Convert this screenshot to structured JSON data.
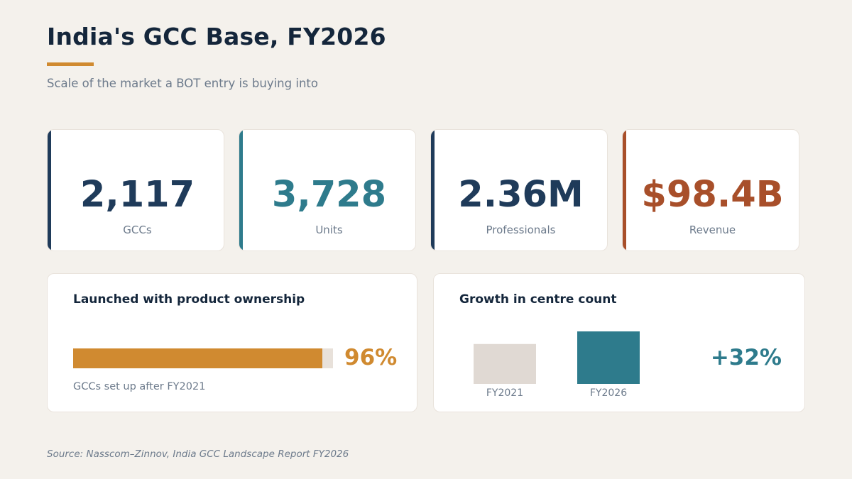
{
  "header": {
    "title": "India's GCC Base, FY2026",
    "subtitle": "Scale of the market a BOT entry is buying into"
  },
  "colors": {
    "navy": "#1f3b5a",
    "teal": "#2e7b8c",
    "rust": "#a84f2a",
    "orange": "#d08a30",
    "muted_bar": "#e0d9d3"
  },
  "kpis": [
    {
      "value": "2,117",
      "label": "GCCs",
      "color": "#1f3b5a"
    },
    {
      "value": "3,728",
      "label": "Units",
      "color": "#2e7b8c"
    },
    {
      "value": "2.36M",
      "label": "Professionals",
      "color": "#1f3b5a"
    },
    {
      "value": "$98.4B",
      "label": "Revenue",
      "color": "#a84f2a"
    }
  ],
  "ownership": {
    "title": "Launched with product ownership",
    "value_label": "96%",
    "caption": "GCCs set up after FY2021"
  },
  "growth": {
    "title": "Growth in centre count",
    "change_label": "+32%"
  },
  "chart_data": [
    {
      "type": "bar",
      "orientation": "horizontal",
      "title": "Launched with product ownership",
      "categories": [
        "GCCs set up after FY2021"
      ],
      "values": [
        96
      ],
      "xlim": [
        0,
        100
      ],
      "unit": "%"
    },
    {
      "type": "bar",
      "title": "Growth in centre count",
      "categories": [
        "FY2021",
        "FY2026"
      ],
      "values": [
        76,
        100
      ],
      "value_note": "relative heights; no absolute values printed",
      "annotation": "+32%"
    }
  ],
  "footer": {
    "source": "Source: Nasscom–Zinnov, India GCC Landscape Report FY2026"
  }
}
